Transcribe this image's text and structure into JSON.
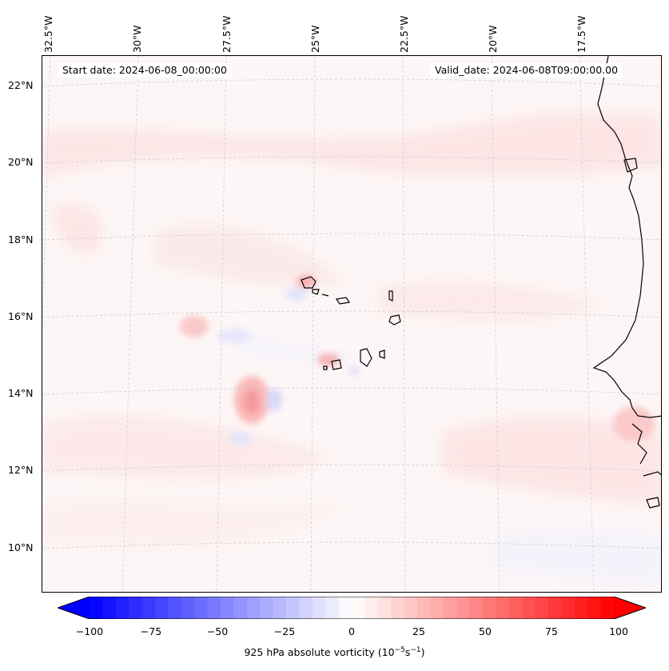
{
  "map": {
    "start_date": "Start date: 2024-06-08_00:00:00",
    "valid_date": "Valid_date: 2024-06-08T09:00:00.00",
    "lon_labels": [
      "32.5°W",
      "30°W",
      "27.5°W",
      "25°W",
      "22.5°W",
      "20°W",
      "17.5°W"
    ],
    "lat_labels": [
      "22°N",
      "20°N",
      "18°N",
      "16°N",
      "14°N",
      "12°N",
      "10°N"
    ]
  },
  "colorbar": {
    "label_prefix": "925 hPa absolute vorticity (10",
    "label_exp1": "−5",
    "label_mid": "s",
    "label_exp2": "−1",
    "label_suffix": ")",
    "ticks": [
      "−100",
      "−75",
      "−50",
      "−25",
      "0",
      "25",
      "50",
      "75",
      "100"
    ],
    "min": -100,
    "max": 100,
    "low_color": "#0000ff",
    "mid_color": "#ffffff",
    "high_color": "#ff0000"
  }
}
